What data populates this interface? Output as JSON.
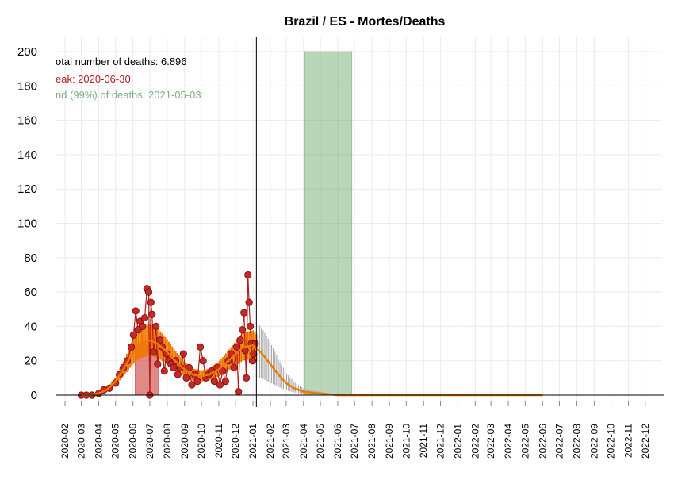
{
  "chart_data": {
    "type": "line",
    "title": "Brazil / ES - Mortes/Deaths",
    "xlabel": "",
    "ylabel": "",
    "ylim": [
      0,
      200
    ],
    "y_ticks": [
      0,
      20,
      40,
      60,
      80,
      100,
      120,
      140,
      160,
      180,
      200
    ],
    "x_range": [
      "2020-01-15",
      "2022-12-31"
    ],
    "x_ticks": [
      "2020-02",
      "2020-03",
      "2020-04",
      "2020-05",
      "2020-06",
      "2020-07",
      "2020-08",
      "2020-09",
      "2020-10",
      "2020-11",
      "2020-12",
      "2021-01",
      "2021-02",
      "2021-03",
      "2021-04",
      "2021-05",
      "2021-06",
      "2021-07",
      "2021-08",
      "2021-09",
      "2021-10",
      "2021-11",
      "2021-12",
      "2022-01",
      "2022-02",
      "2022-03",
      "2022-04",
      "2022-05",
      "2022-06",
      "2022-07",
      "2022-08",
      "2022-09",
      "2022-10",
      "2022-11",
      "2022-12"
    ],
    "grid": true,
    "annotations": {
      "total": "otal number of deaths: 6.896",
      "peak": "eak: 2020-06-30",
      "end": "nd (99%) of deaths: 2021-05-03"
    },
    "today_line": "2021-01-07",
    "peak_band": {
      "start": "2020-06-05",
      "end": "2020-07-17"
    },
    "end_band": {
      "start": "2021-04-03",
      "end": "2021-06-26"
    },
    "colors": {
      "observed": "#b71c1c",
      "fit": "#f07800",
      "forecast_band": "#aaaaaa",
      "peak_band": "#c62828",
      "end_band": "#5a9e5a"
    },
    "series": [
      {
        "values": [
          [
            "2020-03-01",
            0
          ],
          [
            "2020-03-10",
            0
          ],
          [
            "2020-03-20",
            0
          ],
          [
            "2020-04-01",
            1
          ],
          [
            "2020-04-10",
            3
          ],
          [
            "2020-04-20",
            4
          ],
          [
            "2020-05-01",
            7
          ],
          [
            "2020-05-08",
            12
          ],
          [
            "2020-05-15",
            16
          ],
          [
            "2020-05-22",
            20
          ],
          [
            "2020-05-29",
            28
          ],
          [
            "2020-06-02",
            35
          ],
          [
            "2020-06-06",
            49
          ],
          [
            "2020-06-10",
            38
          ],
          [
            "2020-06-14",
            43
          ],
          [
            "2020-06-18",
            40
          ],
          [
            "2020-06-22",
            45
          ],
          [
            "2020-06-26",
            62
          ],
          [
            "2020-06-29",
            60
          ],
          [
            "2020-07-01",
            0
          ],
          [
            "2020-07-03",
            54
          ],
          [
            "2020-07-05",
            47
          ],
          [
            "2020-07-08",
            25
          ],
          [
            "2020-07-12",
            40
          ],
          [
            "2020-07-15",
            18
          ],
          [
            "2020-07-19",
            32
          ],
          [
            "2020-07-23",
            28
          ],
          [
            "2020-07-27",
            14
          ],
          [
            "2020-07-31",
            24
          ],
          [
            "2020-08-04",
            20
          ],
          [
            "2020-08-08",
            18
          ],
          [
            "2020-08-12",
            16
          ],
          [
            "2020-08-16",
            20
          ],
          [
            "2020-08-20",
            12
          ],
          [
            "2020-08-25",
            16
          ],
          [
            "2020-08-30",
            24
          ],
          [
            "2020-09-04",
            10
          ],
          [
            "2020-09-09",
            16
          ],
          [
            "2020-09-14",
            6
          ],
          [
            "2020-09-19",
            12
          ],
          [
            "2020-09-24",
            8
          ],
          [
            "2020-09-29",
            28
          ],
          [
            "2020-10-04",
            20
          ],
          [
            "2020-10-09",
            10
          ],
          [
            "2020-10-14",
            12
          ],
          [
            "2020-10-19",
            14
          ],
          [
            "2020-10-24",
            8
          ],
          [
            "2020-10-29",
            16
          ],
          [
            "2020-11-03",
            6
          ],
          [
            "2020-11-08",
            14
          ],
          [
            "2020-11-13",
            8
          ],
          [
            "2020-11-18",
            20
          ],
          [
            "2020-11-23",
            24
          ],
          [
            "2020-11-28",
            16
          ],
          [
            "2020-12-03",
            28
          ],
          [
            "2020-12-06",
            2
          ],
          [
            "2020-12-09",
            32
          ],
          [
            "2020-12-13",
            38
          ],
          [
            "2020-12-16",
            48
          ],
          [
            "2020-12-18",
            26
          ],
          [
            "2020-12-20",
            10
          ],
          [
            "2020-12-23",
            70
          ],
          [
            "2020-12-25",
            54
          ],
          [
            "2020-12-27",
            40
          ],
          [
            "2020-12-29",
            30
          ],
          [
            "2020-12-31",
            20
          ],
          [
            "2021-01-02",
            24
          ],
          [
            "2021-01-05",
            30
          ]
        ]
      },
      {
        "values": [
          [
            "2020-03-01",
            0
          ],
          [
            "2020-03-15",
            0
          ],
          [
            "2020-04-01",
            1
          ],
          [
            "2020-04-15",
            3
          ],
          [
            "2020-05-01",
            8
          ],
          [
            "2020-05-15",
            15
          ],
          [
            "2020-06-01",
            25
          ],
          [
            "2020-06-15",
            30
          ],
          [
            "2020-06-30",
            32
          ],
          [
            "2020-07-15",
            30
          ],
          [
            "2020-08-01",
            25
          ],
          [
            "2020-08-15",
            20
          ],
          [
            "2020-09-01",
            15
          ],
          [
            "2020-09-15",
            12
          ],
          [
            "2020-10-01",
            11
          ],
          [
            "2020-10-15",
            12
          ],
          [
            "2020-11-01",
            15
          ],
          [
            "2020-11-15",
            19
          ],
          [
            "2020-12-01",
            24
          ],
          [
            "2020-12-15",
            28
          ],
          [
            "2021-01-01",
            29
          ],
          [
            "2021-01-15",
            25
          ],
          [
            "2021-02-01",
            18
          ],
          [
            "2021-02-15",
            12
          ],
          [
            "2021-03-01",
            7
          ],
          [
            "2021-03-15",
            4
          ],
          [
            "2021-04-01",
            2
          ],
          [
            "2021-05-01",
            1
          ],
          [
            "2021-06-01",
            0
          ],
          [
            "2022-06-01",
            0
          ]
        ]
      }
    ]
  }
}
